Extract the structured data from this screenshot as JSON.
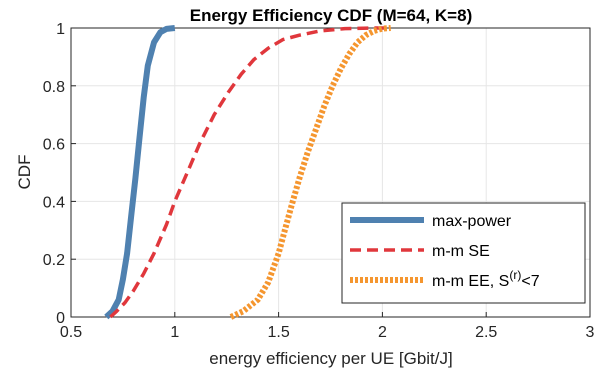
{
  "chart_data": {
    "type": "line",
    "title": "Energy Efficiency CDF (M=64, K=8)",
    "xlabel": "energy efficiency per UE [Gbit/J]",
    "ylabel": "CDF",
    "xlim": [
      0.5,
      3
    ],
    "ylim": [
      0,
      1
    ],
    "xticks": [
      0.5,
      1,
      1.5,
      2,
      2.5,
      3
    ],
    "xtick_labels": [
      "0.5",
      "1",
      "1.5",
      "2",
      "2.5",
      "3"
    ],
    "yticks": [
      0,
      0.2,
      0.4,
      0.6,
      0.8,
      1
    ],
    "ytick_labels": [
      "0",
      "0.2",
      "0.4",
      "0.6",
      "0.8",
      "1"
    ],
    "grid": true,
    "legend_position": "bottom-right",
    "series": [
      {
        "name": "max-power",
        "color": "#4f81b0",
        "style": "solid",
        "x": [
          0.67,
          0.7,
          0.73,
          0.75,
          0.77,
          0.79,
          0.81,
          0.83,
          0.85,
          0.87,
          0.9,
          0.93,
          0.96,
          1.0
        ],
        "y": [
          0.0,
          0.02,
          0.06,
          0.13,
          0.22,
          0.35,
          0.48,
          0.62,
          0.76,
          0.87,
          0.95,
          0.985,
          0.997,
          1.0
        ]
      },
      {
        "name": "m-m SE",
        "color": "#e0373c",
        "style": "dashed",
        "x": [
          0.69,
          0.72,
          0.76,
          0.8,
          0.85,
          0.9,
          0.96,
          1.0,
          1.06,
          1.12,
          1.19,
          1.26,
          1.32,
          1.38,
          1.45,
          1.52,
          1.6,
          1.7,
          1.82,
          1.95,
          2.02
        ],
        "y": [
          0.0,
          0.02,
          0.05,
          0.09,
          0.15,
          0.22,
          0.32,
          0.4,
          0.5,
          0.6,
          0.7,
          0.78,
          0.84,
          0.89,
          0.93,
          0.96,
          0.975,
          0.99,
          0.998,
          1.0,
          1.0
        ]
      },
      {
        "name": "m-m EE, S^(r)<7",
        "legend_main": "m-m EE, S",
        "legend_sup": "(r)",
        "legend_suffix": "<7",
        "color": "#f5962f",
        "style": "dotted",
        "x": [
          1.27,
          1.33,
          1.4,
          1.45,
          1.5,
          1.53,
          1.56,
          1.6,
          1.64,
          1.68,
          1.72,
          1.76,
          1.8,
          1.84,
          1.88,
          1.92,
          1.96,
          2.0,
          2.04
        ],
        "y": [
          0.0,
          0.02,
          0.06,
          0.12,
          0.22,
          0.3,
          0.38,
          0.48,
          0.57,
          0.65,
          0.73,
          0.8,
          0.86,
          0.91,
          0.95,
          0.975,
          0.99,
          0.998,
          1.0
        ]
      }
    ]
  }
}
